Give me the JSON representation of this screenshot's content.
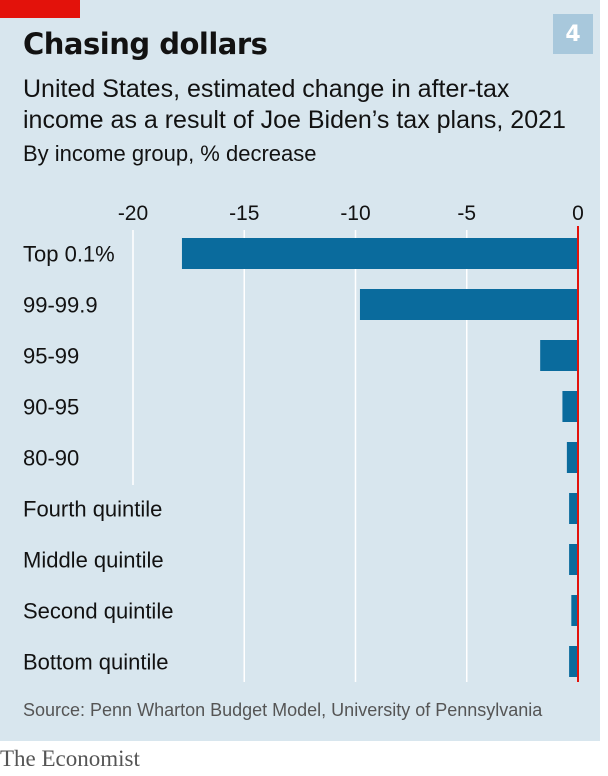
{
  "header": {
    "chart_number": "4",
    "title": "Chasing dollars",
    "subtitle": "United States, estimated change in after-tax income as a result of Joe Biden’s tax plans, 2021",
    "unit": "By income group, % decrease"
  },
  "colors": {
    "bar": "#0a6b9d",
    "zero_line": "#e3120b",
    "grid": "#ffffff",
    "background": "#d8e6ee"
  },
  "chart_data": {
    "type": "bar",
    "orientation": "horizontal",
    "title": "Chasing dollars",
    "categories": [
      "Top 0.1%",
      "99-99.9",
      "95-99",
      "90-95",
      "80-90",
      "Fourth quintile",
      "Middle quintile",
      "Second quintile",
      "Bottom quintile"
    ],
    "values": [
      -17.8,
      -9.8,
      -1.7,
      -0.7,
      -0.5,
      -0.4,
      -0.4,
      -0.3,
      -0.4
    ],
    "xlim": [
      -20,
      0
    ],
    "xticks": [
      -20,
      -15,
      -10,
      -5,
      0
    ],
    "tick_labels": [
      "-20",
      "-15",
      "-10",
      "-5",
      "0"
    ],
    "grid": true
  },
  "footer": {
    "source": "Source: Penn Wharton Budget Model, University of Pennsylvania",
    "brand": "The Economist"
  }
}
